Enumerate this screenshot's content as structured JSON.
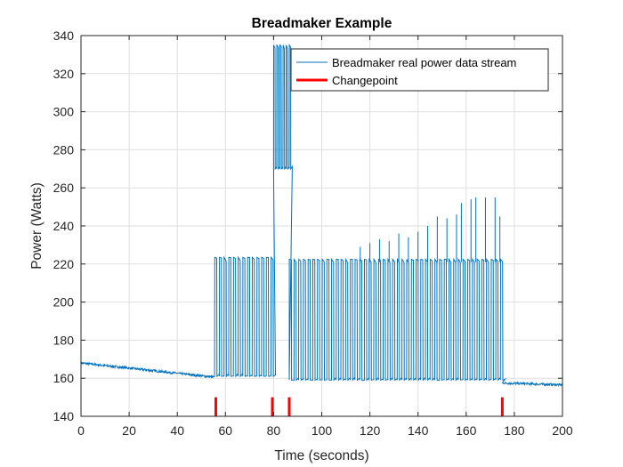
{
  "chart_data": {
    "type": "line",
    "title": "Breadmaker Example",
    "xlabel": "Time (seconds)",
    "ylabel": "Power (Watts)",
    "xlim": [
      0,
      200
    ],
    "ylim": [
      140,
      340
    ],
    "xticks": [
      0,
      20,
      40,
      60,
      80,
      100,
      120,
      140,
      160,
      180,
      200
    ],
    "yticks": [
      140,
      160,
      180,
      200,
      220,
      240,
      260,
      280,
      300,
      320,
      340
    ],
    "grid": true,
    "legend_position": "top-right",
    "series": [
      {
        "name": "Breadmaker real power data stream",
        "color": "#0072BD",
        "segments": [
          {
            "kind": "baseline",
            "x_start": 0,
            "x_end": 55.5,
            "y_start": 168,
            "y_end": 160.5
          },
          {
            "kind": "cycling",
            "x_start": 55.5,
            "x_end": 80,
            "low": 161,
            "high": 223.5,
            "period": 1.95
          },
          {
            "kind": "cycling",
            "x_start": 80,
            "x_end": 86.5,
            "low": 270,
            "high": 335,
            "period": 1.3
          },
          {
            "kind": "cycling",
            "x_start": 86.5,
            "x_end": 175,
            "low": 159,
            "high": 222.5,
            "period": 1.95
          },
          {
            "kind": "baseline",
            "x_start": 175,
            "x_end": 200,
            "y_start": 157.5,
            "y_end": 156.5
          }
        ],
        "overshoot_peaks": [
          {
            "x": 116,
            "y": 229
          },
          {
            "x": 120,
            "y": 231
          },
          {
            "x": 124,
            "y": 233
          },
          {
            "x": 128,
            "y": 232
          },
          {
            "x": 132,
            "y": 236
          },
          {
            "x": 136,
            "y": 234
          },
          {
            "x": 140,
            "y": 237
          },
          {
            "x": 144,
            "y": 240
          },
          {
            "x": 148,
            "y": 245
          },
          {
            "x": 152,
            "y": 244
          },
          {
            "x": 156,
            "y": 246
          },
          {
            "x": 158,
            "y": 252
          },
          {
            "x": 162,
            "y": 254
          },
          {
            "x": 164,
            "y": 255
          },
          {
            "x": 168,
            "y": 255
          },
          {
            "x": 172,
            "y": 255
          },
          {
            "x": 174,
            "y": 245
          }
        ]
      },
      {
        "name": "Changepoint",
        "color": "#FF0000",
        "x": [
          56,
          79.5,
          86.5,
          175
        ],
        "y_range": [
          140,
          150
        ]
      }
    ]
  }
}
